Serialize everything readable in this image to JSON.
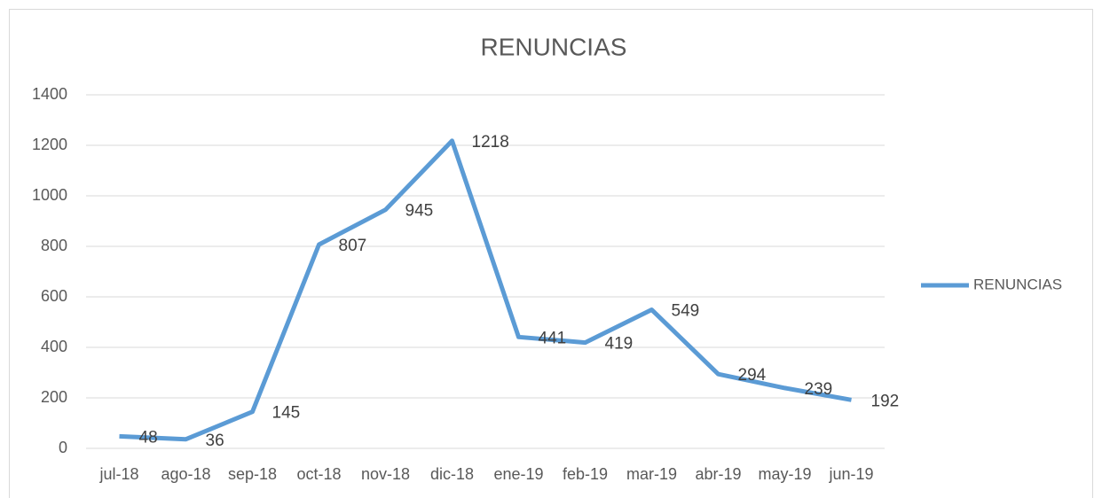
{
  "chart_data": {
    "type": "line",
    "title": "RENUNCIAS",
    "categories": [
      "jul-18",
      "ago-18",
      "sep-18",
      "oct-18",
      "nov-18",
      "dic-18",
      "ene-19",
      "feb-19",
      "mar-19",
      "abr-19",
      "may-19",
      "jun-19"
    ],
    "series": [
      {
        "name": "RENUNCIAS",
        "color": "#5b9bd5",
        "values": [
          48,
          36,
          145,
          807,
          945,
          1218,
          441,
          419,
          549,
          294,
          239,
          192
        ]
      }
    ],
    "ylim": [
      0,
      1400
    ],
    "yticks": [
      0,
      200,
      400,
      600,
      800,
      1000,
      1200,
      1400
    ],
    "grid": true,
    "legend": "right"
  }
}
